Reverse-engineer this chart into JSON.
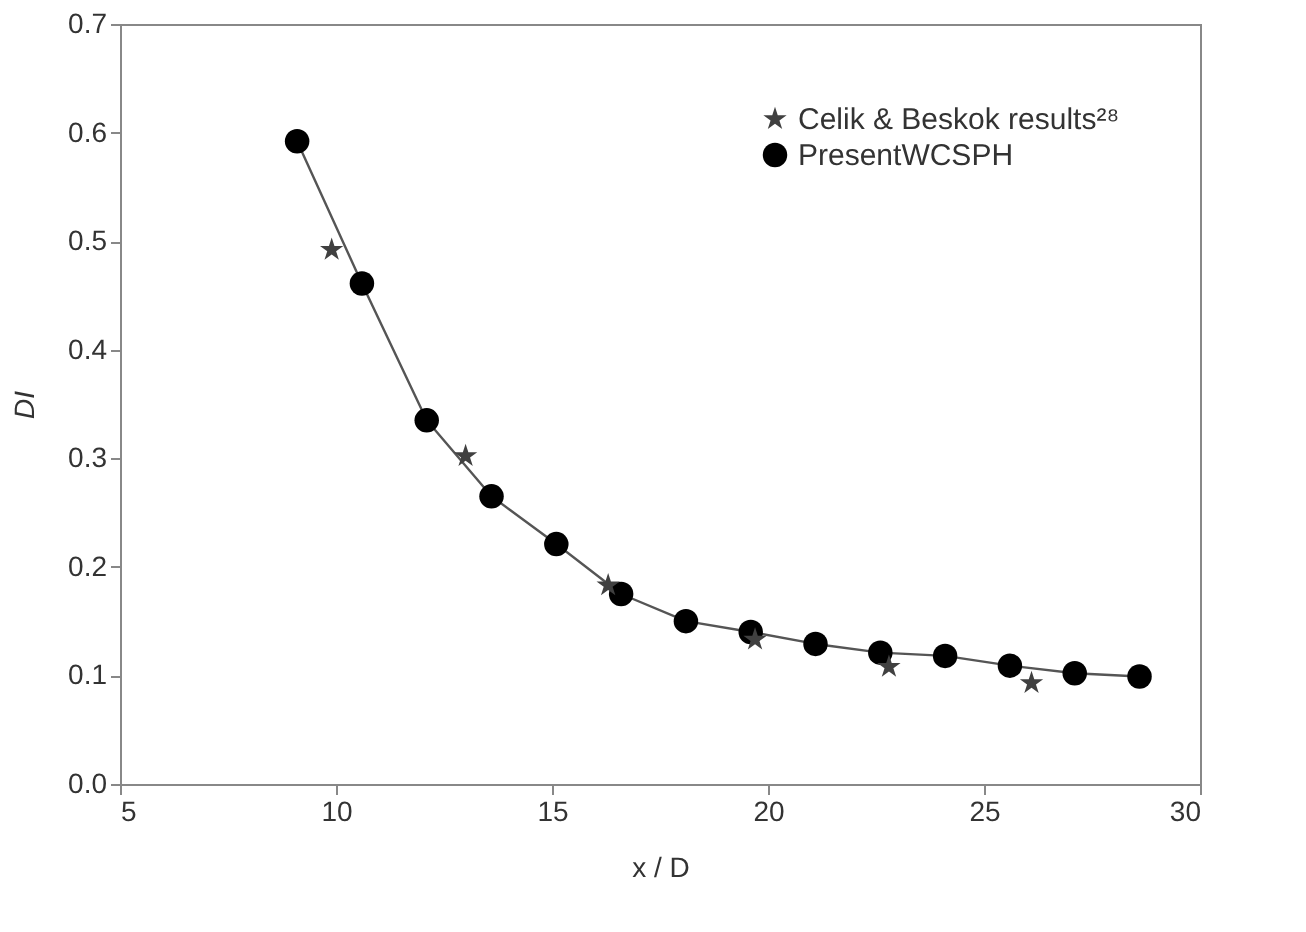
{
  "chart_data": {
    "type": "line",
    "xlabel": "x / D",
    "ylabel": "DI",
    "xlim": [
      5,
      30
    ],
    "xticks": [
      5,
      10,
      15,
      20,
      25,
      30
    ],
    "ylim": [
      0,
      0.7
    ],
    "yticks": [
      {
        "value": 0,
        "label": "0.0"
      },
      0.1,
      0.2,
      0.3,
      0.4,
      0.5,
      0.6,
      0.7
    ],
    "grid": false,
    "legend": "top right",
    "series": [
      {
        "name": "Celik & Beskok results²⁸",
        "type": "scatter",
        "marker": "star",
        "color": "#404040",
        "x": [
          9.9,
          13.0,
          16.3,
          19.7,
          22.8,
          26.1
        ],
        "values": [
          0.492,
          0.302,
          0.183,
          0.133,
          0.108,
          0.093
        ]
      },
      {
        "name": "PresentWCSPH",
        "type": "line",
        "marker": "circle",
        "line_style": "solid",
        "color": "#000000",
        "x": [
          9.1,
          10.6,
          12.1,
          13.6,
          15.1,
          16.6,
          18.1,
          19.6,
          21.1,
          22.6,
          24.1,
          25.6,
          27.1,
          28.6
        ],
        "values": [
          0.592,
          0.461,
          0.335,
          0.265,
          0.221,
          0.175,
          0.15,
          0.14,
          0.129,
          0.121,
          0.118,
          0.109,
          0.102,
          0.099
        ]
      }
    ]
  }
}
